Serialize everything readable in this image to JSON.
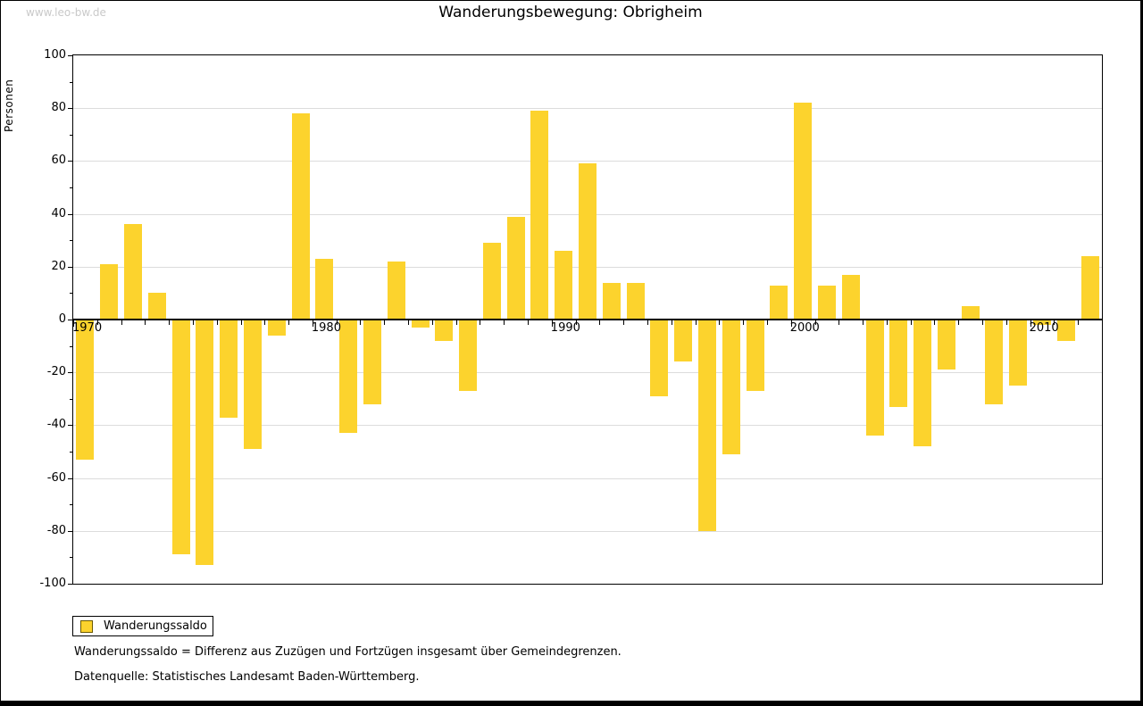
{
  "page": {
    "watermark": "www.leo-bw.de"
  },
  "chart_data": {
    "type": "bar",
    "title": "Wanderungsbewegung: Obrigheim",
    "ylabel": "Personen",
    "xlabel": "",
    "ylim": [
      -100,
      100
    ],
    "ytick_step": 20,
    "ytick_minor_step": 10,
    "grid": true,
    "legend_position": "bottom-left",
    "series_name": "Wanderungssaldo",
    "bar_color": "#fcd32d",
    "grid_color": "#dcdcdc",
    "categories": [
      "1970",
      "1971",
      "1972",
      "1973",
      "1974",
      "1975",
      "1976",
      "1977",
      "1978",
      "1979",
      "1980",
      "1981",
      "1982",
      "1983",
      "1984",
      "1985",
      "1986",
      "1987",
      "1988",
      "1989",
      "1990",
      "1991",
      "1992",
      "1993",
      "1994",
      "1995",
      "1996",
      "1997",
      "1998",
      "1999",
      "2000",
      "2001",
      "2002",
      "2003",
      "2004",
      "2005",
      "2006",
      "2007",
      "2008",
      "2009",
      "2010",
      "2011",
      "2012"
    ],
    "values": [
      -53,
      21,
      36,
      10,
      -89,
      -93,
      -37,
      -49,
      -6,
      78,
      23,
      -43,
      -32,
      22,
      -3,
      -8,
      -27,
      29,
      39,
      79,
      26,
      59,
      14,
      14,
      -29,
      -16,
      -80,
      -51,
      -27,
      13,
      82,
      13,
      17,
      -44,
      -33,
      -48,
      -19,
      5,
      -32,
      -25,
      -2,
      -8,
      24
    ],
    "x_axis_labels": [
      "1970",
      "1980",
      "1990",
      "2000",
      "2010"
    ],
    "y_axis_labels": [
      "100",
      "80",
      "60",
      "40",
      "20",
      "0",
      "-20",
      "-40",
      "-60",
      "-80",
      "-100"
    ]
  },
  "legend": {
    "label": "Wanderungssaldo"
  },
  "footnotes": {
    "line1": "Wanderungssaldo = Differenz aus Zuzügen und Fortzügen insgesamt über Gemeindegrenzen.",
    "line2": "Datenquelle: Statistisches Landesamt Baden-Württemberg."
  }
}
